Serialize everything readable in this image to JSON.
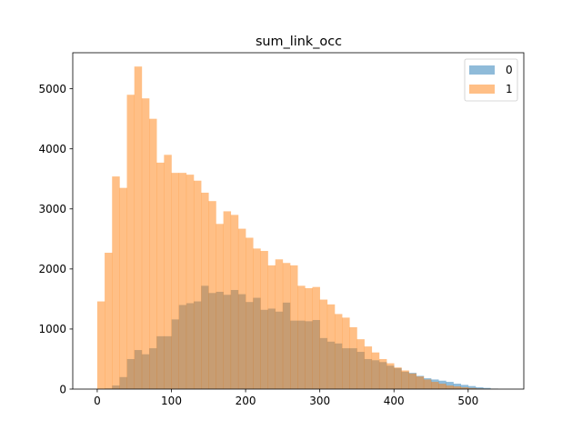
{
  "chart_data": {
    "type": "bar",
    "title": "sum_link_occ",
    "xlabel": "",
    "ylabel": "",
    "xlim": [
      -33,
      575
    ],
    "ylim": [
      0,
      5600
    ],
    "xticks": [
      0,
      100,
      200,
      300,
      400,
      500
    ],
    "yticks": [
      0,
      1000,
      2000,
      3000,
      4000,
      5000
    ],
    "bin_width": 10,
    "legend_position": "top-right",
    "series": [
      {
        "name": "0",
        "color": "#1f77b4",
        "alpha": 0.5,
        "bin_starts": [
          10,
          20,
          30,
          40,
          50,
          60,
          70,
          80,
          90,
          100,
          110,
          120,
          130,
          140,
          150,
          160,
          170,
          180,
          190,
          200,
          210,
          220,
          230,
          240,
          250,
          260,
          270,
          280,
          290,
          300,
          310,
          320,
          330,
          340,
          350,
          360,
          370,
          380,
          390,
          400,
          410,
          420,
          430,
          440,
          450,
          460,
          470,
          480,
          490,
          500,
          510,
          520,
          530
        ],
        "values": [
          10,
          60,
          200,
          500,
          650,
          580,
          680,
          880,
          880,
          1160,
          1400,
          1430,
          1460,
          1720,
          1600,
          1620,
          1570,
          1650,
          1580,
          1450,
          1520,
          1320,
          1340,
          1290,
          1440,
          1140,
          1140,
          1130,
          1150,
          850,
          790,
          760,
          680,
          680,
          620,
          500,
          480,
          450,
          390,
          350,
          290,
          270,
          220,
          180,
          160,
          140,
          120,
          90,
          70,
          50,
          30,
          20,
          8
        ]
      },
      {
        "name": "1",
        "color": "#ff7f0e",
        "alpha": 0.5,
        "bin_starts": [
          0,
          10,
          20,
          30,
          40,
          50,
          60,
          70,
          80,
          90,
          100,
          110,
          120,
          130,
          140,
          150,
          160,
          170,
          180,
          190,
          200,
          210,
          220,
          230,
          240,
          250,
          260,
          270,
          280,
          290,
          300,
          310,
          320,
          330,
          340,
          350,
          360,
          370,
          380,
          390,
          400,
          410,
          420,
          430,
          440,
          450,
          460,
          470,
          480,
          490,
          500,
          510,
          520,
          530
        ],
        "values": [
          1460,
          2270,
          3540,
          3350,
          4900,
          5370,
          4840,
          4500,
          3770,
          3900,
          3600,
          3600,
          3570,
          3470,
          3270,
          3130,
          2750,
          2960,
          2900,
          2670,
          2520,
          2340,
          2300,
          2060,
          2160,
          2100,
          2060,
          1720,
          1680,
          1700,
          1490,
          1410,
          1250,
          1190,
          1030,
          830,
          710,
          610,
          500,
          430,
          360,
          310,
          260,
          210,
          160,
          120,
          90,
          60,
          45,
          30,
          18,
          10,
          6,
          4
        ]
      }
    ]
  }
}
